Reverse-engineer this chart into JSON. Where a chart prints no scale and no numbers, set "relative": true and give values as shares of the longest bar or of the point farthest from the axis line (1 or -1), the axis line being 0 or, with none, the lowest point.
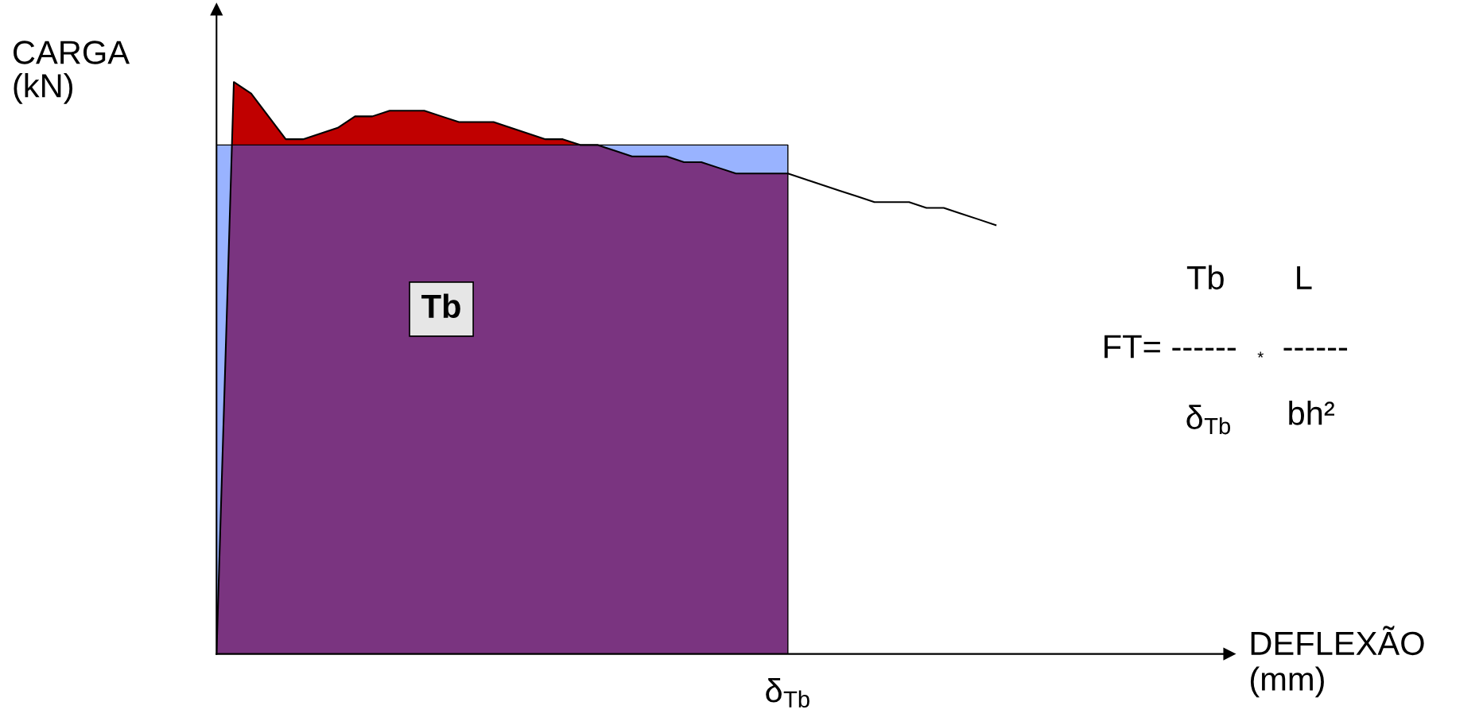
{
  "chart_data": {
    "type": "area",
    "relative": true,
    "ylabel": "CARGA\n(kN)",
    "categories": [
      null,
      null,
      null,
      null,
      null,
      null,
      null,
      null,
      null,
      null,
      null,
      null,
      null,
      null,
      null,
      null,
      null,
      null,
      null,
      null,
      null,
      null,
      null,
      null,
      null,
      null,
      null,
      null,
      null,
      null,
      null,
      null,
      null,
      null,
      null,
      null,
      null,
      null,
      null,
      null,
      null,
      null,
      null,
      null,
      null,
      null
    ],
    "series": [
      {
        "color": "#c00000",
        "values": [
          0,
          1.0,
          0.98,
          0.94,
          0.9,
          0.9,
          0.91,
          0.92,
          0.94,
          0.94,
          0.95,
          0.95,
          0.95,
          0.94,
          0.93,
          0.93,
          0.93,
          0.92,
          0.91,
          0.9,
          0.9,
          0.89,
          0.89,
          0.88,
          0.87,
          0.87,
          0.87,
          0.86,
          0.86,
          0.85,
          0.84,
          0.84,
          0.84,
          0.84,
          null,
          null,
          null,
          null,
          null,
          null,
          null,
          null,
          null,
          null,
          null,
          null
        ]
      },
      {
        "type": "line",
        "color": "#000000",
        "values": [
          0,
          1.0,
          0.98,
          0.94,
          0.9,
          0.9,
          0.91,
          0.92,
          0.94,
          0.94,
          0.95,
          0.95,
          0.95,
          0.94,
          0.93,
          0.93,
          0.93,
          0.92,
          0.91,
          0.9,
          0.9,
          0.89,
          0.89,
          0.88,
          0.87,
          0.87,
          0.87,
          0.86,
          0.86,
          0.85,
          0.84,
          0.84,
          0.84,
          0.84,
          0.83,
          0.82,
          0.81,
          0.8,
          0.79,
          0.79,
          0.79,
          0.78,
          0.78,
          0.77,
          0.76,
          0.75
        ]
      },
      {
        "color": "#3367ff",
        "values": [
          0.89,
          0.89,
          0.89,
          0.89,
          0.89,
          0.89,
          0.89,
          0.89,
          0.89,
          0.89,
          0.89,
          0.89,
          0.89,
          0.89,
          0.89,
          0.89,
          0.89,
          0.89,
          0.89,
          0.89,
          0.89,
          0.89,
          0.89,
          0.89,
          0.89,
          0.89,
          0.89,
          0.89,
          0.89,
          0.89,
          0.89,
          0.89,
          0.89,
          0.89,
          null,
          null,
          null,
          null,
          null,
          null,
          null,
          null,
          null,
          null,
          null,
          null
        ]
      }
    ],
    "annotations": [
      "Tb",
      "δ$_{Tb}$",
      "Tb",
      "L",
      "FT= ------",
      "*",
      "------",
      "δ$_{Tb}$",
      "bh²",
      "DEFLEXÃO\n(mm)"
    ]
  }
}
